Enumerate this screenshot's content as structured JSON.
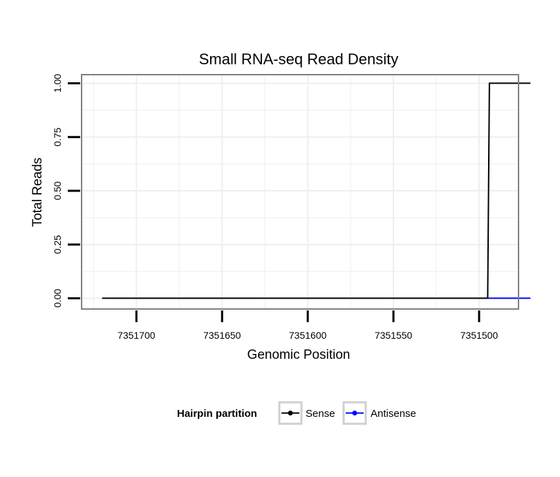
{
  "chart_data": {
    "type": "line",
    "title": "Small RNA-seq Read Density",
    "xlabel": "Genomic Position",
    "ylabel": "Total Reads",
    "x_reversed": true,
    "xlim": [
      7351732,
      7351477
    ],
    "ylim": [
      -0.05,
      1.04
    ],
    "x_ticks": [
      7351700,
      7351650,
      7351600,
      7351550,
      7351500
    ],
    "x_tick_labels": [
      "7351700",
      "7351650",
      "7351600",
      "7351550",
      "7351500"
    ],
    "y_ticks": [
      0,
      0.25,
      0.5,
      0.75,
      1
    ],
    "y_tick_labels": [
      "0.00",
      "0.25",
      "0.50",
      "0.75",
      "1.00"
    ],
    "grid": true,
    "series": [
      {
        "name": "Sense",
        "color": "#000000",
        "x": [
          7351720,
          7351495,
          7351494,
          7351470
        ],
        "y": [
          0,
          0,
          1,
          1
        ]
      },
      {
        "name": "Antisense",
        "color": "#0000ff",
        "x": [
          7351495,
          7351470
        ],
        "y": [
          0,
          0
        ]
      }
    ],
    "legend": {
      "title": "Hairpin partition",
      "position": "bottom",
      "entries": [
        "Sense",
        "Antisense"
      ]
    }
  }
}
